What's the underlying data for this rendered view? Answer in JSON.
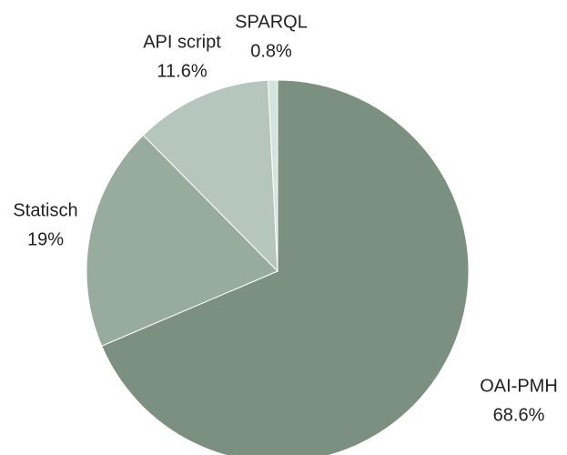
{
  "chart_data": {
    "type": "pie",
    "categories": [
      "OAI-PMH",
      "Statisch",
      "API script",
      "SPARQL"
    ],
    "values": [
      68.6,
      19,
      11.6,
      0.8
    ],
    "value_labels": [
      "68.6%",
      "19%",
      "11.6%",
      "0.8%"
    ],
    "colors": [
      "#7b9080",
      "#97ab9e",
      "#b4c6bd",
      "#d3e3de"
    ]
  }
}
